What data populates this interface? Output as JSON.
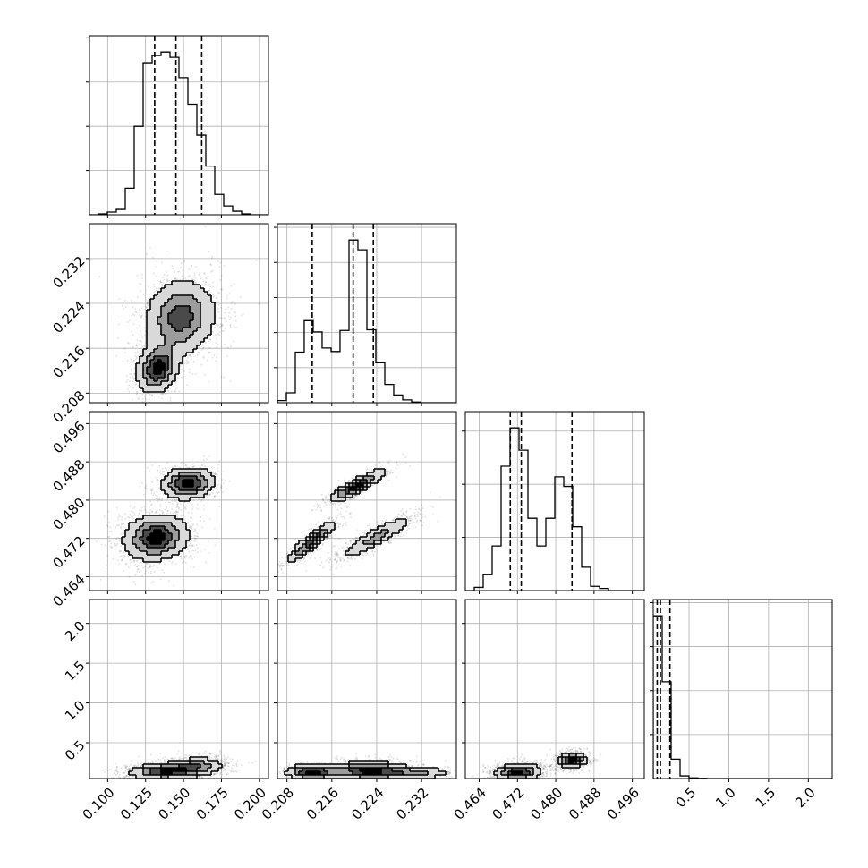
{
  "chart_data": {
    "type": "corner",
    "grid": true,
    "params": [
      {
        "range": [
          0.088,
          0.206
        ],
        "ticks": [
          0.1,
          0.125,
          0.15,
          0.175,
          0.2
        ],
        "tick_labels": [
          "0.100",
          "0.125",
          "0.150",
          "0.175",
          "0.200"
        ],
        "quantiles": [
          0.131,
          0.145,
          0.162
        ]
      },
      {
        "range": [
          0.2063,
          0.2382
        ],
        "ticks": [
          0.208,
          0.216,
          0.224,
          0.232
        ],
        "tick_labels": [
          "0.208",
          "0.216",
          "0.224",
          "0.232"
        ],
        "quantiles": [
          0.2125,
          0.2198,
          0.2234
        ]
      },
      {
        "range": [
          0.4611,
          0.4985
        ],
        "ticks": [
          0.464,
          0.472,
          0.48,
          0.488,
          0.496
        ],
        "tick_labels": [
          "0.464",
          "0.472",
          "0.480",
          "0.488",
          "0.496"
        ],
        "quantiles": [
          0.4705,
          0.4728,
          0.4834
        ]
      },
      {
        "range": [
          0.05,
          2.3
        ],
        "ticks": [
          0.5,
          1.0,
          1.5,
          2.0
        ],
        "tick_labels": [
          "0.5",
          "1.0",
          "1.5",
          "2.0"
        ],
        "quantiles": [
          0.1,
          0.14,
          0.26
        ]
      }
    ],
    "histograms": [
      {
        "edges": [
          0.088,
          0.0939,
          0.0998,
          0.1057,
          0.1116,
          0.1175,
          0.1234,
          0.1293,
          0.1352,
          0.1411,
          0.147,
          0.1529,
          0.1588,
          0.1647,
          0.1706,
          0.1765,
          0.1824,
          0.1883,
          0.1942,
          0.2001,
          0.206
        ],
        "counts": [
          0,
          1,
          3,
          6,
          30,
          100,
          172,
          180,
          184,
          178,
          155,
          125,
          90,
          55,
          23,
          10,
          4,
          1,
          0,
          0
        ]
      },
      {
        "edges": [
          0.2063,
          0.20789,
          0.20949,
          0.21108,
          0.21268,
          0.21427,
          0.21587,
          0.21746,
          0.21906,
          0.22065,
          0.22225,
          0.22384,
          0.22544,
          0.22703,
          0.22863,
          0.23022,
          0.23182,
          0.23341,
          0.23501,
          0.2366,
          0.2382
        ],
        "counts": [
          3,
          14,
          72,
          117,
          101,
          78,
          73,
          103,
          232,
          218,
          104,
          57,
          26,
          11,
          4,
          1,
          0,
          0,
          0,
          0
        ]
      },
      {
        "edges": [
          0.4611,
          0.46297,
          0.46484,
          0.46671,
          0.46858,
          0.47045,
          0.47232,
          0.47419,
          0.47606,
          0.47793,
          0.4798,
          0.48167,
          0.48354,
          0.48541,
          0.48728,
          0.48915,
          0.49102,
          0.49289,
          0.49476,
          0.49663,
          0.4985
        ],
        "counts": [
          0,
          3,
          15,
          42,
          117,
          153,
          132,
          68,
          42,
          68,
          107,
          98,
          60,
          22,
          4,
          2,
          0,
          0,
          0,
          0
        ]
      },
      {
        "edges": [
          0.05,
          0.1625,
          0.275,
          0.3875,
          0.5,
          0.6125,
          0.725,
          0.8375,
          0.95,
          1.0625,
          1.175,
          1.2875,
          1.4,
          1.5125,
          1.625,
          1.7375,
          1.85,
          1.9625,
          2.075,
          2.1875,
          2.3
        ],
        "counts": [
          740,
          440,
          88,
          12,
          3,
          1,
          0,
          0,
          0,
          0,
          0,
          0,
          0,
          0,
          0,
          0,
          0,
          0,
          0,
          0
        ]
      }
    ],
    "density_panels": [
      {
        "x_param": 0,
        "y_param": 1,
        "components": [
          {
            "mx": 0.148,
            "my": 0.2215,
            "sx": 0.012,
            "sy": 0.0035,
            "rho": 0.1,
            "w": 0.68
          },
          {
            "mx": 0.133,
            "my": 0.2125,
            "sx": 0.007,
            "sy": 0.0023,
            "rho": 0.2,
            "w": 0.32
          }
        ]
      },
      {
        "x_param": 0,
        "y_param": 2,
        "components": [
          {
            "mx": 0.132,
            "my": 0.4722,
            "sx": 0.011,
            "sy": 0.0025,
            "rho": 0.1,
            "w": 0.64
          },
          {
            "mx": 0.153,
            "my": 0.4835,
            "sx": 0.009,
            "sy": 0.0017,
            "rho": 0.1,
            "w": 0.36
          }
        ]
      },
      {
        "x_param": 1,
        "y_param": 2,
        "components": [
          {
            "mx": 0.2125,
            "my": 0.4714,
            "sx": 0.0023,
            "sy": 0.0022,
            "rho": 0.9,
            "w": 0.32
          },
          {
            "mx": 0.2205,
            "my": 0.483,
            "sx": 0.0025,
            "sy": 0.0017,
            "rho": 0.88,
            "w": 0.36
          },
          {
            "mx": 0.224,
            "my": 0.4723,
            "sx": 0.0035,
            "sy": 0.0024,
            "rho": 0.9,
            "w": 0.32
          }
        ]
      },
      {
        "x_param": 0,
        "y_param": 3,
        "components": [
          {
            "mx": 0.138,
            "my": 0.14,
            "sx": 0.012,
            "sy": 0.05,
            "rho": 0.1,
            "w": 0.62
          },
          {
            "mx": 0.158,
            "my": 0.2,
            "sx": 0.01,
            "sy": 0.06,
            "rho": 0.1,
            "w": 0.38
          }
        ]
      },
      {
        "x_param": 1,
        "y_param": 3,
        "components": [
          {
            "mx": 0.2126,
            "my": 0.13,
            "sx": 0.0024,
            "sy": 0.05,
            "rho": 0.0,
            "w": 0.3
          },
          {
            "mx": 0.2225,
            "my": 0.15,
            "sx": 0.0035,
            "sy": 0.06,
            "rho": 0.0,
            "w": 0.5
          },
          {
            "mx": 0.23,
            "my": 0.12,
            "sx": 0.004,
            "sy": 0.04,
            "rho": 0.0,
            "w": 0.2
          }
        ]
      },
      {
        "x_param": 2,
        "y_param": 3,
        "components": [
          {
            "mx": 0.4722,
            "my": 0.13,
            "sx": 0.0025,
            "sy": 0.05,
            "rho": 0.1,
            "w": 0.62
          },
          {
            "mx": 0.4835,
            "my": 0.28,
            "sx": 0.0015,
            "sy": 0.05,
            "rho": 0.1,
            "w": 0.38
          }
        ]
      }
    ]
  }
}
